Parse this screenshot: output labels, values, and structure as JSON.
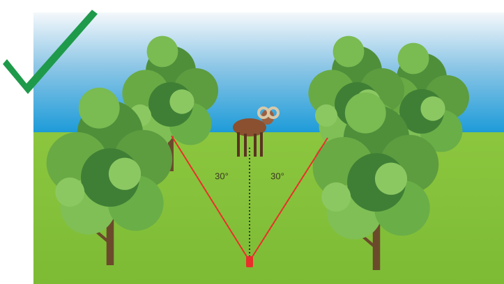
{
  "angle_labels": [
    "30°",
    "30°"
  ]
}
